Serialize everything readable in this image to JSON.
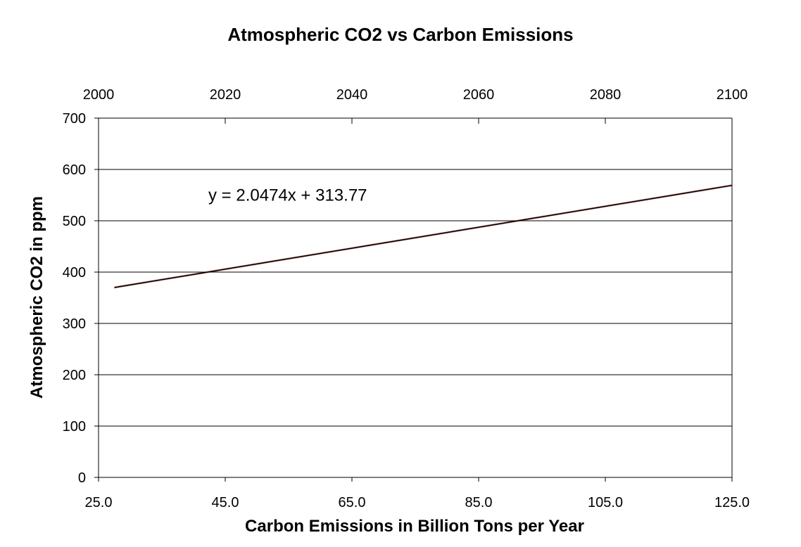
{
  "chart_data": {
    "type": "line",
    "title": "Atmospheric CO2 vs Carbon Emissions",
    "xlabel": "Carbon Emissions in Billion Tons per Year",
    "ylabel": "Atmospheric CO2 in ppm",
    "xlim": [
      25.0,
      125.0
    ],
    "ylim": [
      0,
      700
    ],
    "x_ticks": [
      "25.0",
      "45.0",
      "65.0",
      "85.0",
      "105.0",
      "125.0"
    ],
    "y_ticks": [
      "0",
      "100",
      "200",
      "300",
      "400",
      "500",
      "600",
      "700"
    ],
    "secondary_x": {
      "label": "",
      "range": [
        2000,
        2100
      ],
      "ticks": [
        "2000",
        "2020",
        "2040",
        "2060",
        "2080",
        "2100"
      ]
    },
    "grid": "horizontal",
    "legend": "none",
    "series": [
      {
        "x": [
          27.5,
          125.0
        ],
        "y": [
          370,
          569
        ],
        "color": "#000000"
      }
    ],
    "annotations": [
      {
        "text": "y = 2.0474x + 313.77",
        "x": 43,
        "y": 550
      }
    ]
  }
}
